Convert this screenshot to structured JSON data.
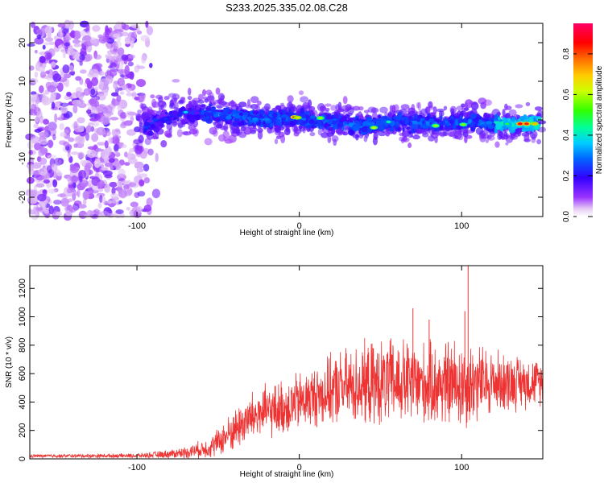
{
  "title": "S233.2025.335.02.08.C28",
  "chart_data": [
    {
      "type": "heatmap",
      "name": "spectrogram",
      "xlabel": "Height of straight line (km)",
      "ylabel": "Frequency (Hz)",
      "xlim": [
        -166,
        150
      ],
      "ylim": [
        -25,
        25
      ],
      "xticks": [
        -100,
        0,
        100
      ],
      "yticks": [
        -20,
        -10,
        0,
        10,
        20
      ],
      "colorbar": {
        "label": "Normalized spectral amplitude",
        "range": [
          0,
          0.95
        ],
        "ticks": [
          0.0,
          0.2,
          0.4,
          0.6,
          0.8
        ]
      },
      "ridge": {
        "description_points_x": [
          -95,
          -80,
          -60,
          -40,
          -20,
          0,
          20,
          40,
          60,
          80,
          100,
          120,
          145
        ],
        "description_points_freq": [
          -2,
          1,
          2,
          1,
          0,
          0.5,
          -0.5,
          -1.5,
          -0.5,
          -1,
          -0.5,
          -1,
          -1
        ]
      }
    },
    {
      "type": "line",
      "name": "snr",
      "xlabel": "Height of straight line (km)",
      "ylabel": "SNR (10 * v/v)",
      "xlim": [
        -166,
        150
      ],
      "ylim": [
        0,
        1360
      ],
      "xticks": [
        -100,
        0,
        100
      ],
      "yticks": [
        0,
        200,
        400,
        600,
        800,
        1000,
        1200
      ],
      "color": "#ee3333",
      "envelope": {
        "x": [
          -166,
          -100,
          -85,
          -70,
          -55,
          -45,
          -35,
          -25,
          -15,
          -5,
          5,
          15,
          25,
          40,
          60,
          80,
          100,
          120,
          150
        ],
        "mean": [
          20,
          22,
          30,
          45,
          80,
          160,
          250,
          320,
          340,
          380,
          420,
          460,
          500,
          520,
          540,
          520,
          530,
          540,
          540
        ],
        "spread": [
          12,
          15,
          25,
          40,
          70,
          120,
          160,
          180,
          180,
          200,
          200,
          220,
          250,
          280,
          300,
          280,
          320,
          220,
          150
        ]
      },
      "peaks": [
        {
          "x": 104,
          "y": 1360
        },
        {
          "x": 102,
          "y": 1040
        },
        {
          "x": 70,
          "y": 1060
        },
        {
          "x": 80,
          "y": 980
        }
      ]
    }
  ]
}
